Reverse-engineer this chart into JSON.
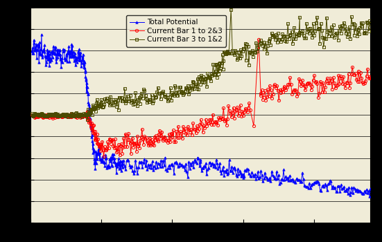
{
  "legend_labels": [
    "Total Potential",
    "Current Bar 1 to 2&3",
    "Current Bar 3 to 1&2"
  ],
  "pot_color": "blue",
  "cur1_color": "red",
  "cur3_color": "#4a4a00",
  "background_color": "#F0ECD8",
  "outer_bg": "#000000",
  "xlim": [
    0,
    480
  ],
  "ylim": [
    -500,
    500
  ],
  "yticks": [
    -500,
    -400,
    -300,
    -200,
    -100,
    0,
    100,
    200,
    300,
    400,
    500
  ],
  "xticks": [
    0,
    100,
    200,
    300,
    400
  ],
  "legend_loc": "upper center"
}
